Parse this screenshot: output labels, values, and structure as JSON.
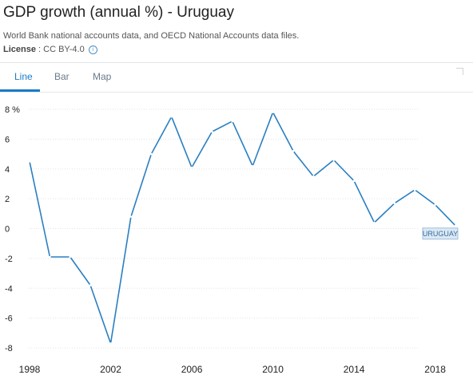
{
  "header": {
    "title": "GDP growth (annual %) - Uruguay",
    "source": "World Bank national accounts data, and OECD National Accounts data files.",
    "license_label": "License",
    "license_value": " : CC BY-4.0",
    "info_icon": "info-icon"
  },
  "tabs": [
    {
      "label": "Line",
      "active": true
    },
    {
      "label": "Bar",
      "active": false
    },
    {
      "label": "Map",
      "active": false
    }
  ],
  "colors": {
    "accent": "#1a7ac8",
    "series": "#2a7fc1"
  },
  "chart_data": {
    "type": "line",
    "title": "GDP growth (annual %) - Uruguay",
    "xlabel": "",
    "ylabel": "",
    "x": [
      1998,
      1999,
      2000,
      2001,
      2002,
      2003,
      2004,
      2005,
      2006,
      2007,
      2008,
      2009,
      2010,
      2011,
      2012,
      2013,
      2014,
      2015,
      2016,
      2017,
      2018,
      2019
    ],
    "series": [
      {
        "name": "URUGUAY",
        "values": [
          4.5,
          -1.9,
          -1.9,
          -3.8,
          -7.7,
          0.8,
          5.0,
          7.5,
          4.1,
          6.5,
          7.2,
          4.2,
          7.8,
          5.2,
          3.5,
          4.6,
          3.2,
          0.4,
          1.7,
          2.6,
          1.6,
          0.2
        ]
      }
    ],
    "xticks": [
      "1998",
      "2002",
      "2006",
      "2010",
      "2014",
      "2018"
    ],
    "yticks": [
      "8 %",
      "6",
      "4",
      "2",
      "0",
      "-2",
      "-4",
      "-6",
      "-8"
    ],
    "ylim": [
      -8,
      8
    ],
    "xlim": [
      1998,
      2019
    ],
    "grid": true,
    "legend": "end-label"
  }
}
